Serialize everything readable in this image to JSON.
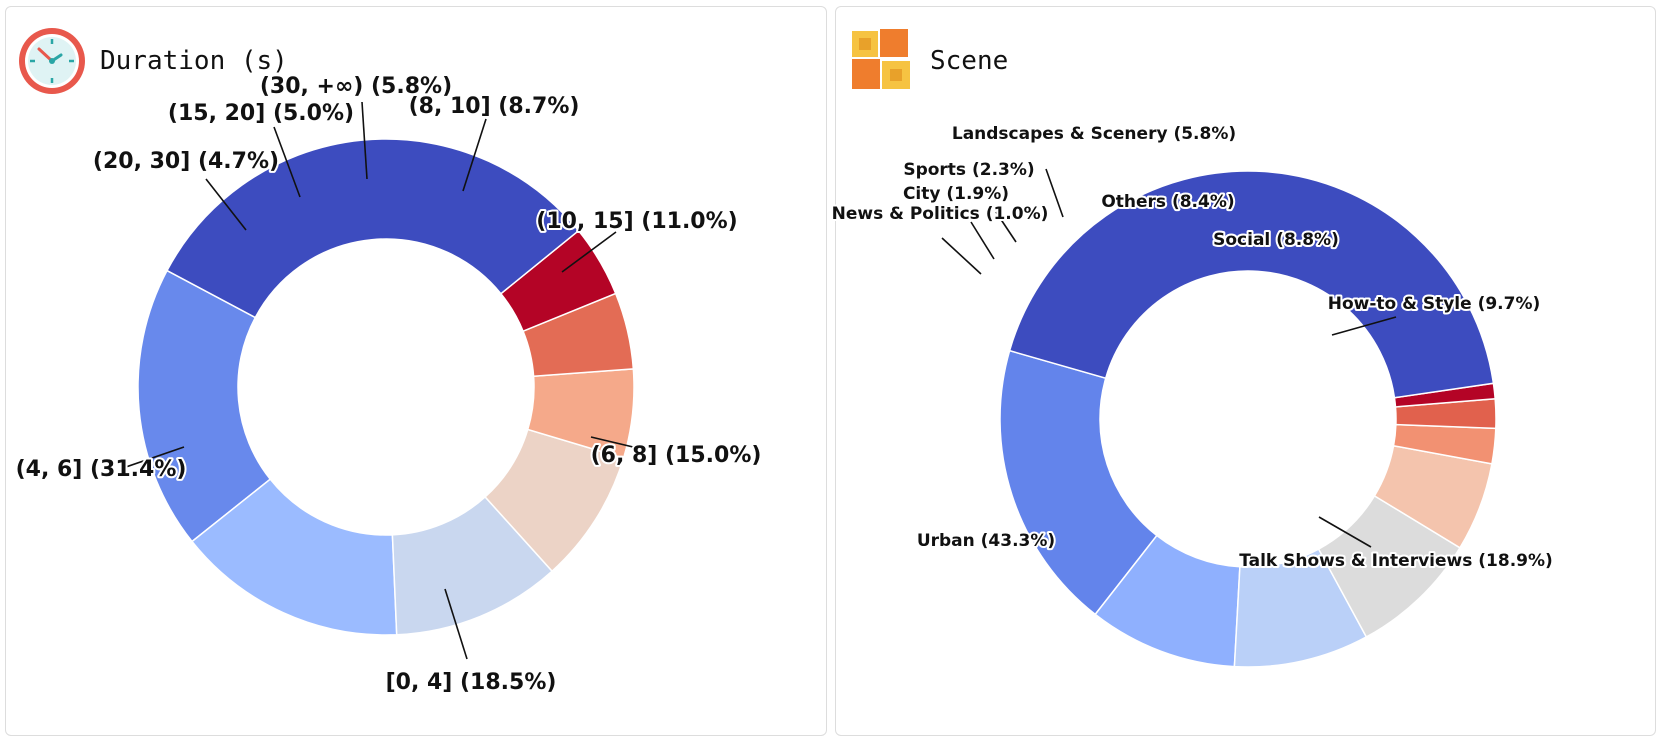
{
  "colors": {
    "panel_border": "#dddddd",
    "slice_stroke": "#ffffff",
    "leader": "#111111"
  },
  "panels": [
    {
      "title": "Duration (s)",
      "icon": "clock-icon"
    },
    {
      "title": "Scene",
      "icon": "cubes-icon"
    }
  ],
  "chart_data": [
    {
      "type": "pie",
      "subtype": "donut",
      "title": "Duration (s)",
      "start_angle_deg": 152,
      "direction": "counterclockwise",
      "label_format": "{category} ({percent}%)",
      "categories": [
        "[0, 4]",
        "(6, 8]",
        "(10, 15]",
        "(8, 10]",
        "(30, +∞)",
        "(15, 20]",
        "(20, 30]",
        "(4, 6]"
      ],
      "values": [
        18.5,
        15.0,
        11.0,
        8.7,
        5.8,
        5.0,
        4.7,
        31.4
      ],
      "colors": [
        "#6889ec",
        "#9bbbff",
        "#c9d7ef",
        "#ecd3c6",
        "#f5a98a",
        "#e36c55",
        "#b40426",
        "#3d4cbf"
      ]
    },
    {
      "type": "pie",
      "subtype": "donut",
      "title": "Scene",
      "start_angle_deg": 164,
      "direction": "counterclockwise",
      "label_format": "{category} ({percent}%)",
      "categories": [
        "Talk Shows & Interviews",
        "How-to & Style",
        "Social",
        "Others",
        "Landscapes & Scenery",
        "Sports",
        "City",
        "News & Politics",
        "Urban"
      ],
      "values": [
        18.9,
        9.7,
        8.8,
        8.4,
        5.8,
        2.3,
        1.9,
        1.0,
        43.3
      ],
      "colors": [
        "#6384eb",
        "#8fb0fe",
        "#bad0f8",
        "#dcdcdc",
        "#f4c4ad",
        "#f29172",
        "#e1614d",
        "#b40426",
        "#3d4cbf"
      ]
    }
  ]
}
